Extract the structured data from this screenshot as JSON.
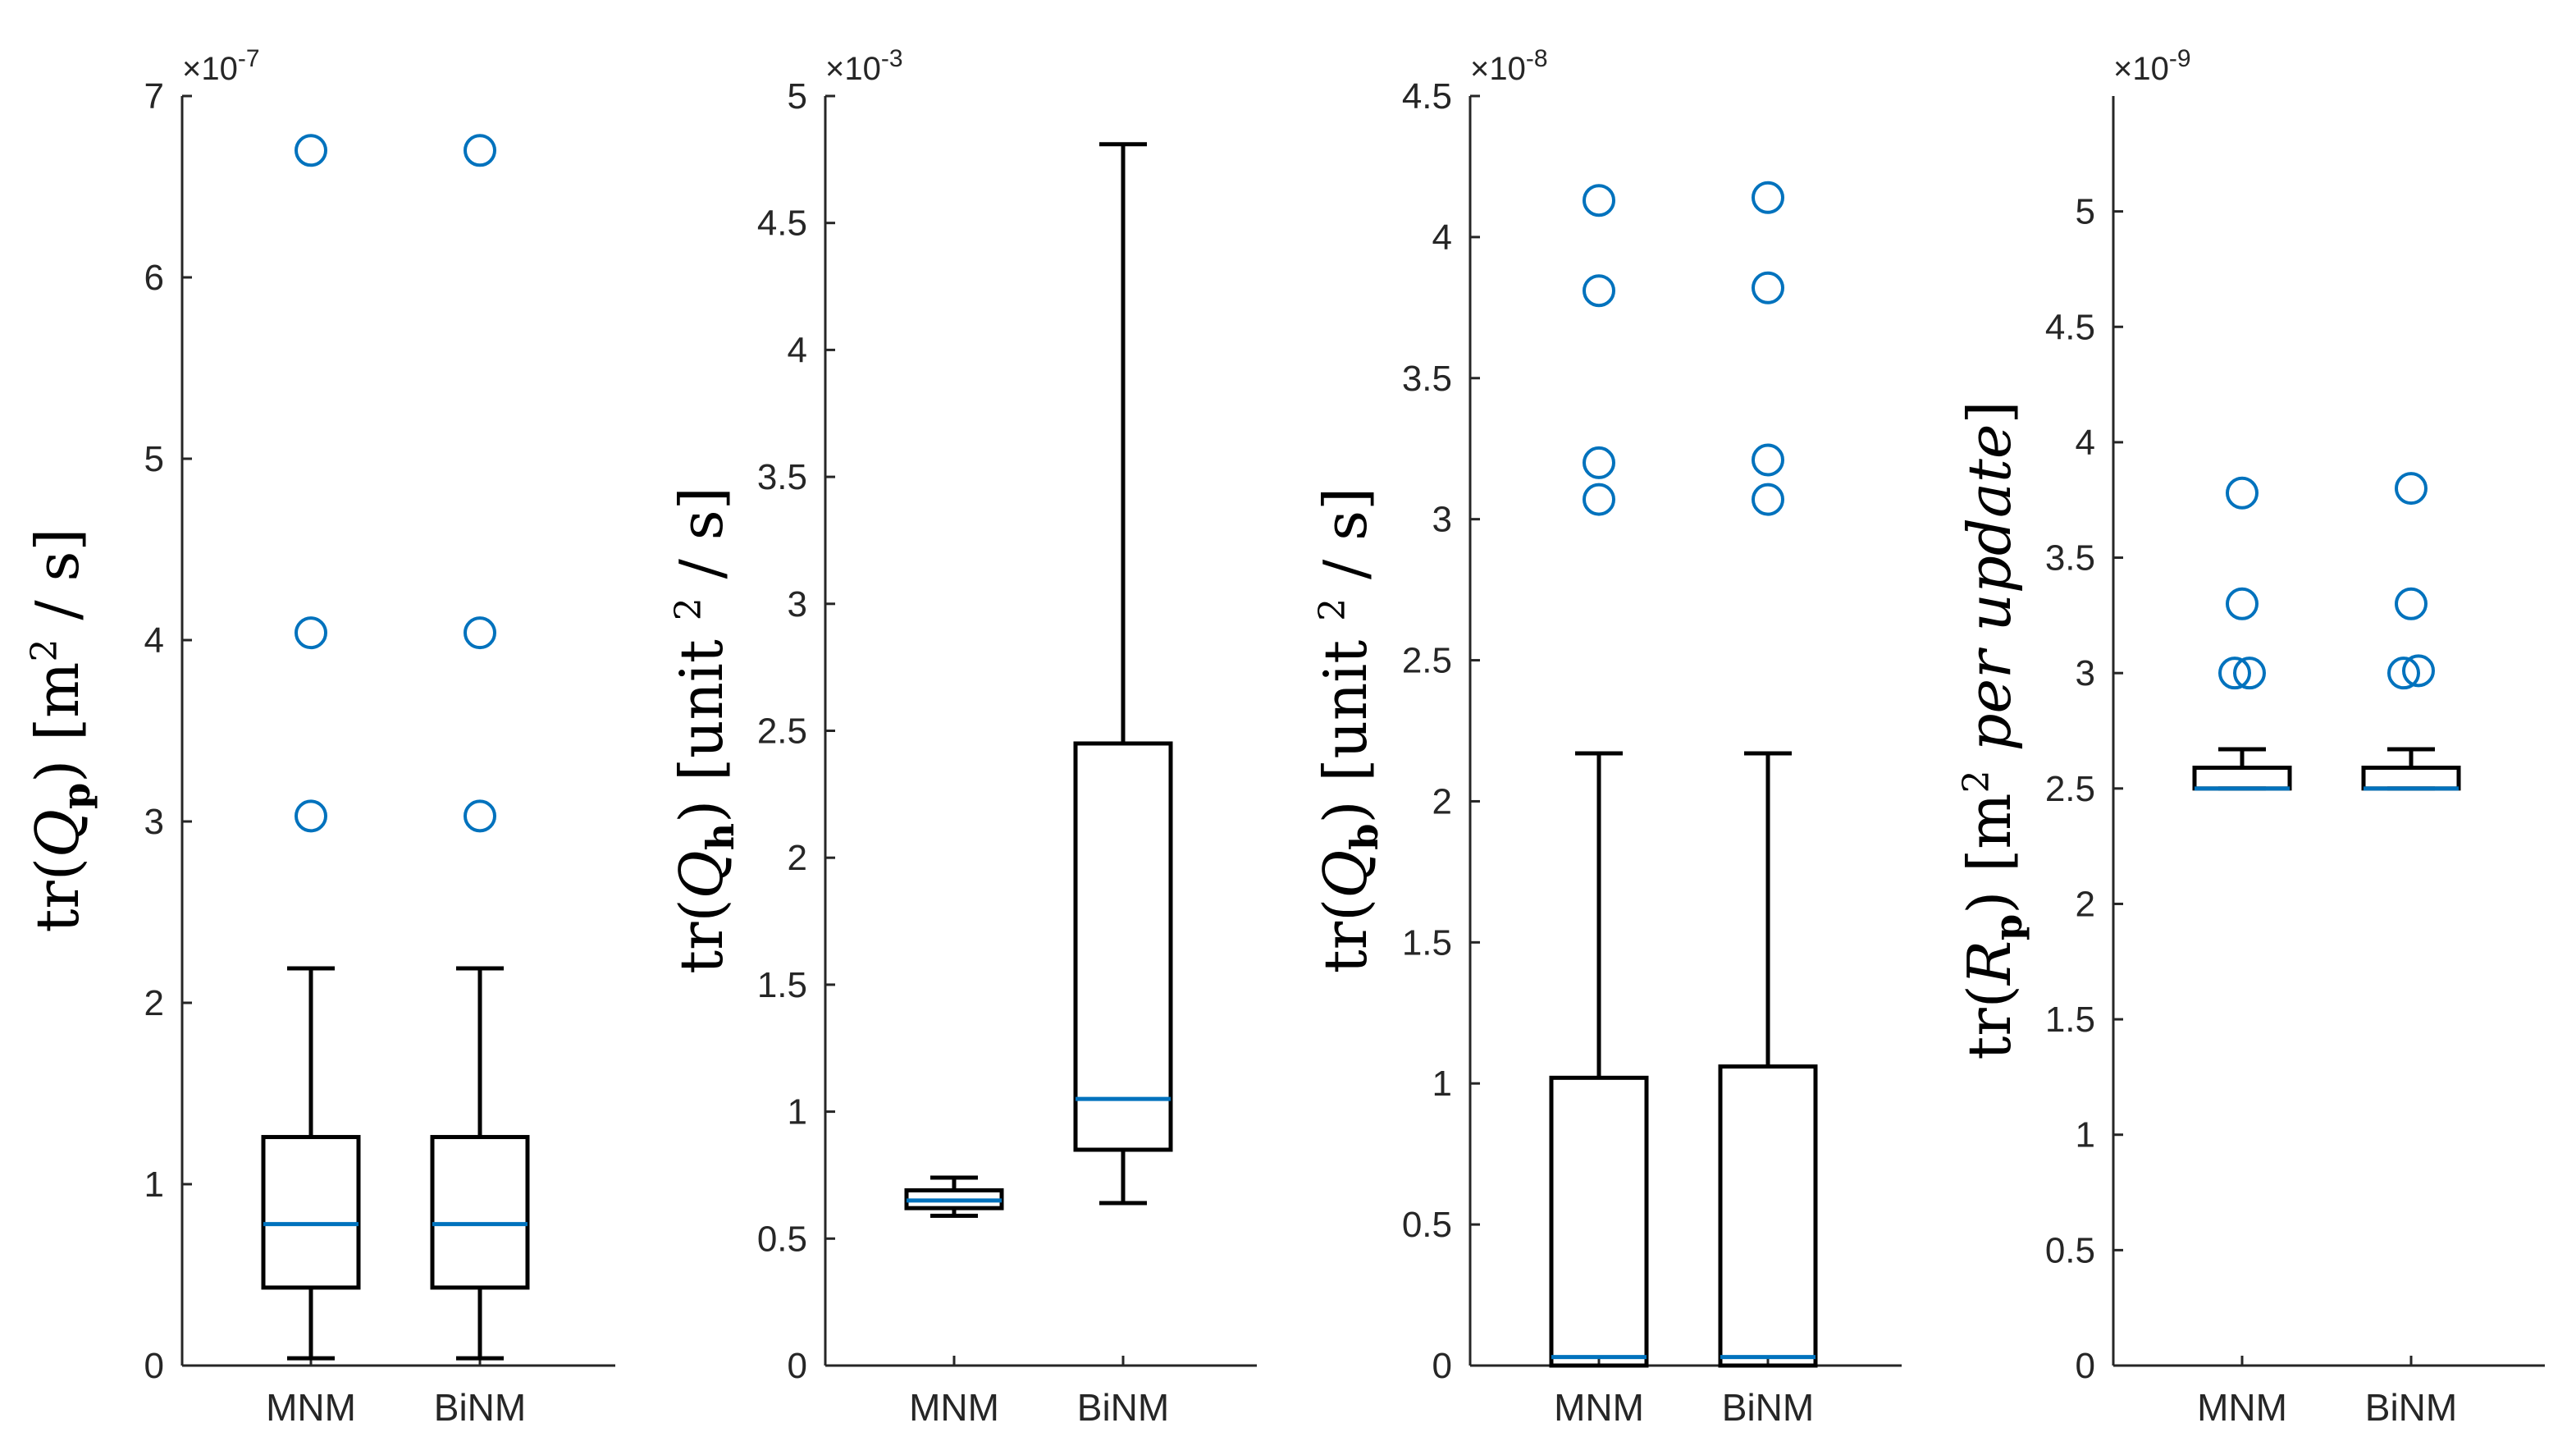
{
  "chart_data": [
    {
      "type": "boxplot",
      "ylabel": {
        "pre": "tr(",
        "var": "Q",
        "sub": "p",
        "post": ")  [m",
        "sup": "2",
        "tail": " / s]"
      },
      "exponent": {
        "base": "×10",
        "exp": "-7"
      },
      "ylim": [
        0,
        7
      ],
      "yticks": [
        0,
        1,
        2,
        3,
        4,
        5,
        6,
        7
      ],
      "categories": [
        "MNM",
        "BiNM"
      ],
      "boxes": [
        {
          "name": "MNM",
          "whisker_low": 0.04,
          "q1": 0.43,
          "median": 0.78,
          "q3": 1.26,
          "whisker_high": 2.19,
          "outliers": [
            3.03,
            4.04,
            6.7
          ]
        },
        {
          "name": "BiNM",
          "whisker_low": 0.04,
          "q1": 0.43,
          "median": 0.78,
          "q3": 1.26,
          "whisker_high": 2.19,
          "outliers": [
            3.03,
            4.04,
            6.7
          ]
        }
      ]
    },
    {
      "type": "boxplot",
      "ylabel": {
        "pre": "tr(",
        "var": "Q",
        "sub": "h",
        "post": ")  [unit ",
        "sup": "2",
        "tail": " / s]"
      },
      "exponent": {
        "base": "×10",
        "exp": "-3"
      },
      "ylim": [
        0,
        5
      ],
      "yticks": [
        0,
        0.5,
        1,
        1.5,
        2,
        2.5,
        3,
        3.5,
        4,
        4.5,
        5
      ],
      "categories": [
        "MNM",
        "BiNM"
      ],
      "boxes": [
        {
          "name": "MNM",
          "whisker_low": 0.59,
          "q1": 0.62,
          "median": 0.65,
          "q3": 0.69,
          "whisker_high": 0.74,
          "outliers": []
        },
        {
          "name": "BiNM",
          "whisker_low": 0.64,
          "q1": 0.85,
          "median": 1.05,
          "q3": 2.45,
          "whisker_high": 4.81,
          "outliers": []
        }
      ]
    },
    {
      "type": "boxplot",
      "ylabel": {
        "pre": "tr(",
        "var": "Q",
        "sub": "b",
        "post": ")  [unit ",
        "sup": "2",
        "tail": " / s]"
      },
      "exponent": {
        "base": "×10",
        "exp": "-8"
      },
      "ylim": [
        0,
        4.5
      ],
      "yticks": [
        0,
        0.5,
        1,
        1.5,
        2,
        2.5,
        3,
        3.5,
        4,
        4.5
      ],
      "categories": [
        "MNM",
        "BiNM"
      ],
      "boxes": [
        {
          "name": "MNM",
          "whisker_low": 0.0,
          "q1": 0.0,
          "median": 0.03,
          "q3": 1.02,
          "whisker_high": 2.17,
          "outliers": [
            3.07,
            3.2,
            3.81,
            4.13
          ]
        },
        {
          "name": "BiNM",
          "whisker_low": 0.0,
          "q1": 0.0,
          "median": 0.03,
          "q3": 1.06,
          "whisker_high": 2.17,
          "outliers": [
            3.07,
            3.21,
            3.82,
            4.14
          ]
        }
      ]
    },
    {
      "type": "boxplot",
      "ylabel": {
        "pre": "tr(",
        "var": "R",
        "sub": "p",
        "post": ")  [m",
        "sup": "2",
        "tail": " per update]",
        "tail_italic": true
      },
      "exponent": {
        "base": "×10",
        "exp": "-9"
      },
      "ylim": [
        0,
        5.5
      ],
      "yticks": [
        0,
        0.5,
        1,
        1.5,
        2,
        2.5,
        3,
        3.5,
        4,
        4.5,
        5
      ],
      "categories": [
        "MNM",
        "BiNM"
      ],
      "boxes": [
        {
          "name": "MNM",
          "whisker_low": 2.5,
          "q1": 2.5,
          "median": 2.5,
          "q3": 2.59,
          "whisker_high": 2.67,
          "outliers": [
            3.0,
            3.0,
            3.3,
            3.78
          ]
        },
        {
          "name": "BiNM",
          "whisker_low": 2.5,
          "q1": 2.5,
          "median": 2.5,
          "q3": 2.59,
          "whisker_high": 2.67,
          "outliers": [
            3.0,
            3.01,
            3.3,
            3.8
          ]
        }
      ]
    }
  ],
  "colors": {
    "axis": "#262626",
    "box": "#000000",
    "median": "#0072BD",
    "outlier": "#0072BD"
  }
}
